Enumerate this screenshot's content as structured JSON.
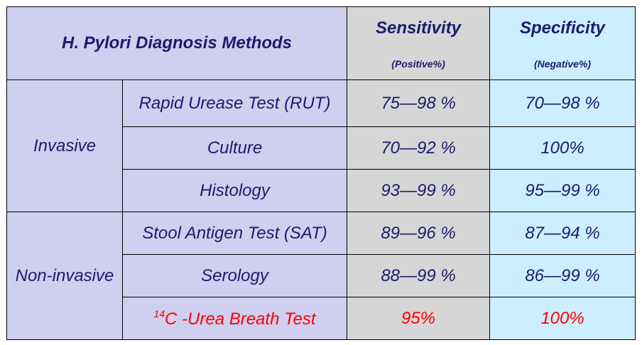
{
  "header": {
    "title": "H. Pylori Diagnosis Methods",
    "sensitivity": "Sensitivity",
    "sensitivity_sub": "(Positive%)",
    "specificity": "Specificity",
    "specificity_sub": "(Negative%)"
  },
  "groups": {
    "invasive": "Invasive",
    "non_invasive": "Non-invasive"
  },
  "rows": [
    {
      "method": "Rapid Urease Test (RUT)",
      "sensitivity": "75—98 %",
      "specificity": "70—98 %"
    },
    {
      "method": "Culture",
      "sensitivity": "70—92 %",
      "specificity": "100%"
    },
    {
      "method": "Histology",
      "sensitivity": "93—99 %",
      "specificity": "95—99 %"
    },
    {
      "method": "Stool Antigen Test (SAT)",
      "sensitivity": "89—96 %",
      "specificity": "87—94 %"
    },
    {
      "method": "Serology",
      "sensitivity": "88—99 %",
      "specificity": "86—99 %"
    },
    {
      "method_sup": "14",
      "method": "C -Urea Breath Test",
      "sensitivity": "95%",
      "specificity": "100%"
    }
  ],
  "colors": {
    "text": "#1b1b6e",
    "highlight": "#ff0000",
    "lavender": "#cfcfef",
    "gray": "#d6d6d6",
    "light_blue": "#cdeeff"
  }
}
